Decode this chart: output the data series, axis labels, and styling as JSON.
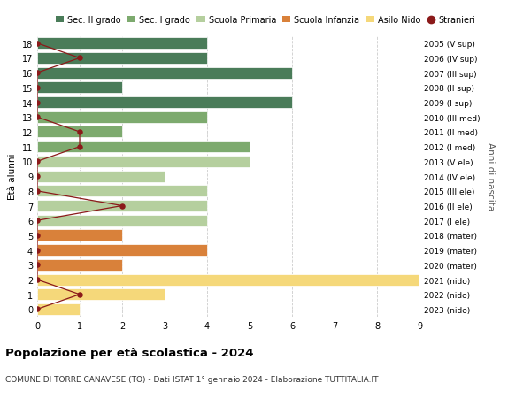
{
  "ages": [
    18,
    17,
    16,
    15,
    14,
    13,
    12,
    11,
    10,
    9,
    8,
    7,
    6,
    5,
    4,
    3,
    2,
    1,
    0
  ],
  "right_labels": [
    "2005 (V sup)",
    "2006 (IV sup)",
    "2007 (III sup)",
    "2008 (II sup)",
    "2009 (I sup)",
    "2010 (III med)",
    "2011 (II med)",
    "2012 (I med)",
    "2013 (V ele)",
    "2014 (IV ele)",
    "2015 (III ele)",
    "2016 (II ele)",
    "2017 (I ele)",
    "2018 (mater)",
    "2019 (mater)",
    "2020 (mater)",
    "2021 (nido)",
    "2022 (nido)",
    "2023 (nido)"
  ],
  "bar_values": [
    4,
    4,
    6,
    2,
    6,
    4,
    2,
    5,
    5,
    3,
    4,
    4,
    4,
    2,
    4,
    2,
    9,
    3,
    1
  ],
  "bar_colors": [
    "#4a7c59",
    "#4a7c59",
    "#4a7c59",
    "#4a7c59",
    "#4a7c59",
    "#7daa6e",
    "#7daa6e",
    "#7daa6e",
    "#b5cf9e",
    "#b5cf9e",
    "#b5cf9e",
    "#b5cf9e",
    "#b5cf9e",
    "#d9813a",
    "#d9813a",
    "#d9813a",
    "#f5d87a",
    "#f5d87a",
    "#f5d87a"
  ],
  "stranieri_values": [
    0,
    1,
    0,
    0,
    0,
    0,
    1,
    1,
    0,
    0,
    0,
    2,
    0,
    0,
    0,
    0,
    0,
    1,
    0
  ],
  "stranieri_color": "#8b1a1a",
  "title": "Popolazione per età scolastica - 2024",
  "subtitle": "COMUNE DI TORRE CANAVESE (TO) - Dati ISTAT 1° gennaio 2024 - Elaborazione TUTTITALIA.IT",
  "xlabel_right": "Anni di nascita",
  "ylabel": "Età alunni",
  "xlim": [
    0,
    9
  ],
  "xticks": [
    0,
    1,
    2,
    3,
    4,
    5,
    6,
    7,
    8,
    9
  ],
  "legend_labels": [
    "Sec. II grado",
    "Sec. I grado",
    "Scuola Primaria",
    "Scuola Infanzia",
    "Asilo Nido",
    "Stranieri"
  ],
  "legend_colors": [
    "#4a7c59",
    "#7daa6e",
    "#b5cf9e",
    "#d9813a",
    "#f5d87a",
    "#8b1a1a"
  ],
  "bg_color": "#ffffff",
  "grid_color": "#cccccc"
}
